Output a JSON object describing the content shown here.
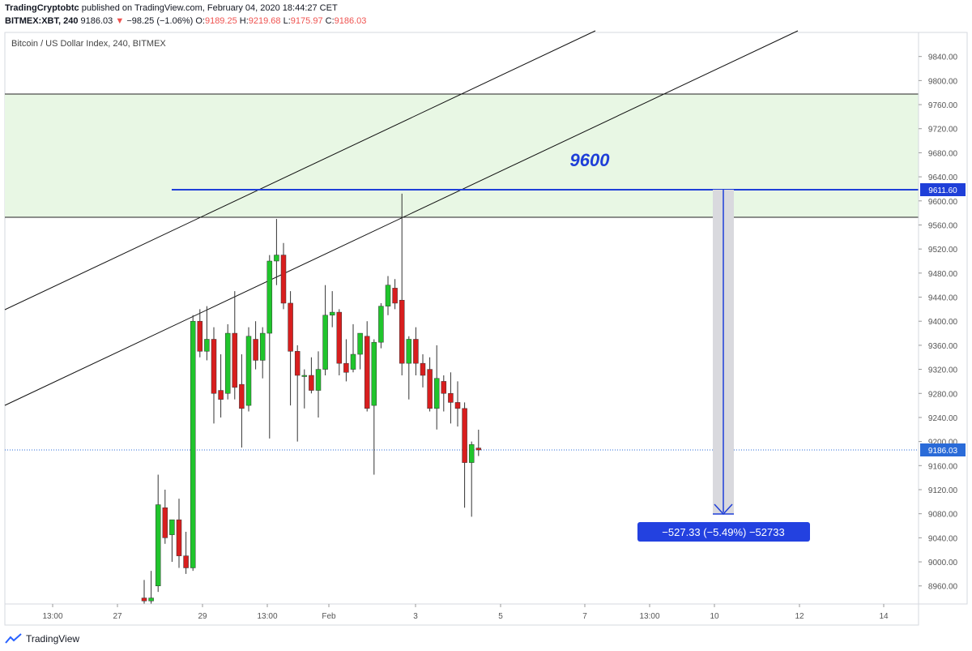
{
  "header": {
    "author": "TradingCryptobtc",
    "published_text": "published on TradingView.com, February 04, 2020 18:44:27 CET",
    "symbol": "BITMEX:XBT, 240",
    "last": "9186.03",
    "change": "−98.25 (−1.06%)",
    "o_label": "O:",
    "o": "9189.25",
    "h_label": "H:",
    "h": "9219.68",
    "l_label": "L:",
    "l": "9175.97",
    "c_label": "C:",
    "c": "9186.03"
  },
  "footer": {
    "logo_text": "TradingView"
  },
  "colors": {
    "up": "#20c52c",
    "down": "#d81e1e",
    "zone": "#e8f7e4",
    "blue": "#1f3fd8",
    "dotted": "#2a6bd8",
    "badge": "#2341e0"
  },
  "chart_data": {
    "type": "candlestick",
    "title": "Bitcoin / US Dollar Index, 240, BITMEX",
    "ylim": [
      8930,
      9880
    ],
    "y_ticks": [
      8960,
      9000,
      9040,
      9080,
      9120,
      9160,
      9200,
      9240,
      9280,
      9320,
      9360,
      9400,
      9440,
      9480,
      9520,
      9560,
      9600,
      9640,
      9680,
      9720,
      9760,
      9800,
      9840
    ],
    "x_ticks": [
      "13:00",
      "27",
      "29",
      "13:00",
      "Feb",
      "3",
      "5",
      "7",
      "13:00",
      "10",
      "12",
      "14"
    ],
    "candles": [
      {
        "o": 8940,
        "h": 8970,
        "l": 8900,
        "c": 8935
      },
      {
        "o": 8935,
        "h": 8985,
        "l": 8920,
        "c": 8940
      },
      {
        "o": 8960,
        "h": 9145,
        "l": 8950,
        "c": 9095
      },
      {
        "o": 9090,
        "h": 9120,
        "l": 9030,
        "c": 9040
      },
      {
        "o": 9045,
        "h": 9070,
        "l": 9000,
        "c": 9070
      },
      {
        "o": 9070,
        "h": 9105,
        "l": 8990,
        "c": 9010
      },
      {
        "o": 9010,
        "h": 9050,
        "l": 8980,
        "c": 8990
      },
      {
        "o": 8990,
        "h": 9410,
        "l": 8985,
        "c": 9400
      },
      {
        "o": 9400,
        "h": 9420,
        "l": 9340,
        "c": 9350
      },
      {
        "o": 9350,
        "h": 9425,
        "l": 9335,
        "c": 9370
      },
      {
        "o": 9370,
        "h": 9390,
        "l": 9230,
        "c": 9280
      },
      {
        "o": 9285,
        "h": 9345,
        "l": 9240,
        "c": 9270
      },
      {
        "o": 9280,
        "h": 9395,
        "l": 9270,
        "c": 9380
      },
      {
        "o": 9380,
        "h": 9450,
        "l": 9270,
        "c": 9290
      },
      {
        "o": 9295,
        "h": 9345,
        "l": 9190,
        "c": 9255
      },
      {
        "o": 9260,
        "h": 9390,
        "l": 9250,
        "c": 9375
      },
      {
        "o": 9370,
        "h": 9400,
        "l": 9320,
        "c": 9335
      },
      {
        "o": 9335,
        "h": 9390,
        "l": 9305,
        "c": 9380
      },
      {
        "o": 9380,
        "h": 9510,
        "l": 9205,
        "c": 9500
      },
      {
        "o": 9500,
        "h": 9570,
        "l": 9460,
        "c": 9510
      },
      {
        "o": 9510,
        "h": 9530,
        "l": 9420,
        "c": 9430
      },
      {
        "o": 9430,
        "h": 9450,
        "l": 9260,
        "c": 9350
      },
      {
        "o": 9350,
        "h": 9360,
        "l": 9200,
        "c": 9310
      },
      {
        "o": 9310,
        "h": 9320,
        "l": 9255,
        "c": 9310
      },
      {
        "o": 9310,
        "h": 9340,
        "l": 9280,
        "c": 9285
      },
      {
        "o": 9285,
        "h": 9350,
        "l": 9240,
        "c": 9320
      },
      {
        "o": 9320,
        "h": 9460,
        "l": 9310,
        "c": 9410
      },
      {
        "o": 9410,
        "h": 9450,
        "l": 9390,
        "c": 9415
      },
      {
        "o": 9415,
        "h": 9420,
        "l": 9310,
        "c": 9330
      },
      {
        "o": 9330,
        "h": 9370,
        "l": 9300,
        "c": 9315
      },
      {
        "o": 9320,
        "h": 9395,
        "l": 9315,
        "c": 9345
      },
      {
        "o": 9345,
        "h": 9380,
        "l": 9320,
        "c": 9380
      },
      {
        "o": 9375,
        "h": 9400,
        "l": 9250,
        "c": 9255
      },
      {
        "o": 9260,
        "h": 9370,
        "l": 9145,
        "c": 9365
      },
      {
        "o": 9365,
        "h": 9430,
        "l": 9355,
        "c": 9425
      },
      {
        "o": 9425,
        "h": 9475,
        "l": 9410,
        "c": 9460
      },
      {
        "o": 9455,
        "h": 9470,
        "l": 9420,
        "c": 9430
      },
      {
        "o": 9435,
        "h": 9612,
        "l": 9310,
        "c": 9330
      },
      {
        "o": 9330,
        "h": 9375,
        "l": 9270,
        "c": 9370
      },
      {
        "o": 9370,
        "h": 9390,
        "l": 9310,
        "c": 9330
      },
      {
        "o": 9330,
        "h": 9345,
        "l": 9290,
        "c": 9310
      },
      {
        "o": 9320,
        "h": 9340,
        "l": 9250,
        "c": 9255
      },
      {
        "o": 9255,
        "h": 9360,
        "l": 9220,
        "c": 9305
      },
      {
        "o": 9300,
        "h": 9310,
        "l": 9250,
        "c": 9280
      },
      {
        "o": 9280,
        "h": 9315,
        "l": 9230,
        "c": 9265
      },
      {
        "o": 9265,
        "h": 9300,
        "l": 9225,
        "c": 9255
      },
      {
        "o": 9255,
        "h": 9265,
        "l": 9090,
        "c": 9165
      },
      {
        "o": 9165,
        "h": 9200,
        "l": 9075,
        "c": 9195
      },
      {
        "o": 9189.25,
        "h": 9219.68,
        "l": 9175.97,
        "c": 9186.03
      }
    ],
    "price_labels": [
      "9611.60",
      "9186.03"
    ],
    "zone_label": "9600",
    "measure_label": "−527.33 (−5.49%) −52733"
  }
}
